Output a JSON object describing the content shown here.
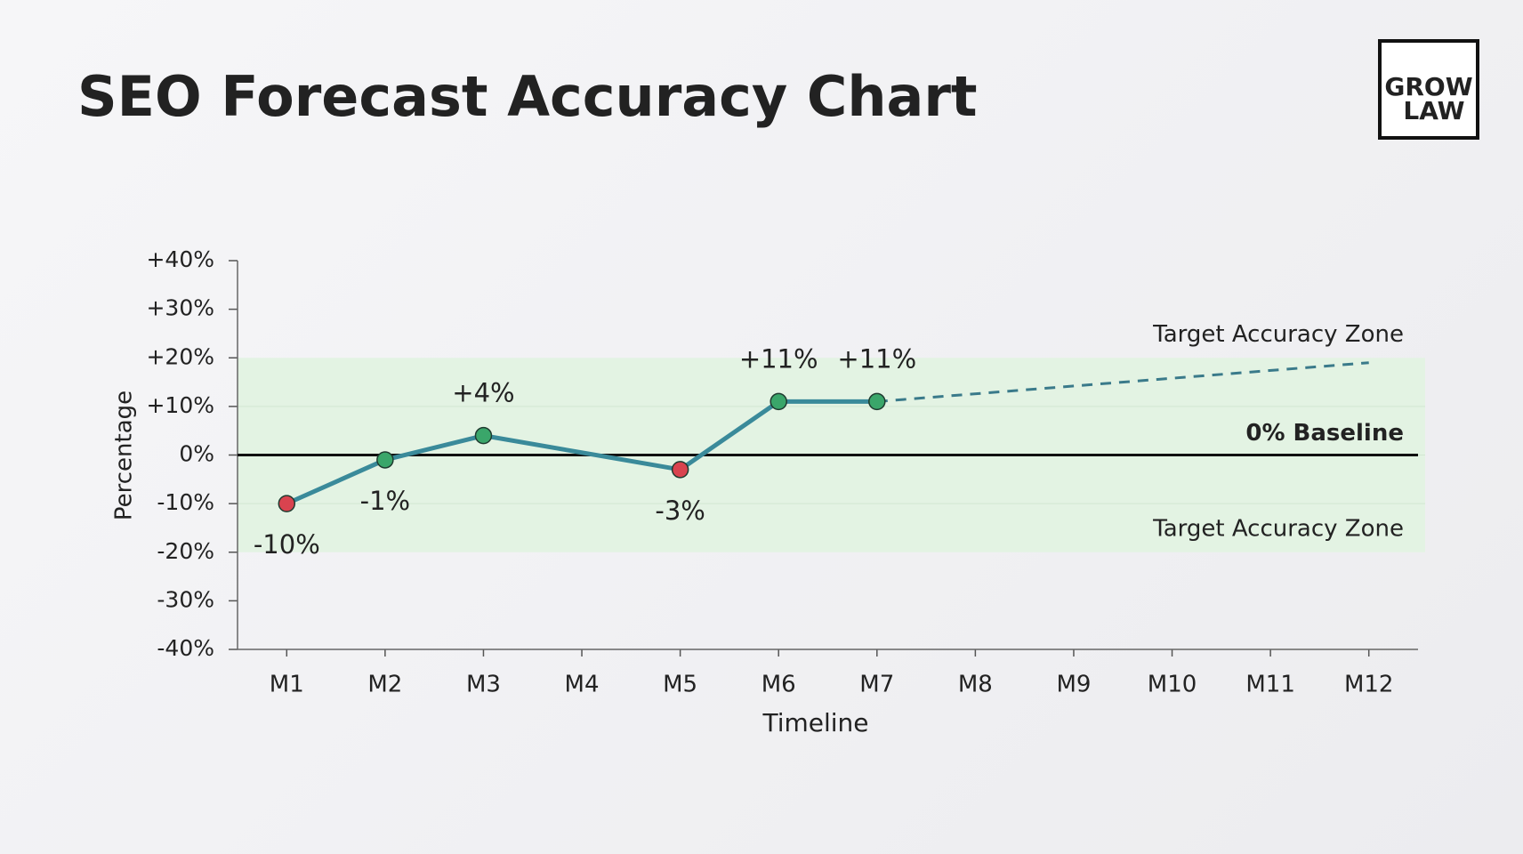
{
  "logo": {
    "lines": [
      "GROW",
      "LAW"
    ]
  },
  "chart_data": {
    "type": "line",
    "title": "SEO Forecast Accuracy Chart",
    "x_label": "Timeline",
    "y_label": "Percentage",
    "xlim": [
      0.5,
      12.5
    ],
    "xticks": [
      {
        "value": 1,
        "label": "M1"
      },
      {
        "value": 2,
        "label": "M2"
      },
      {
        "value": 3,
        "label": "M3"
      },
      {
        "value": 4,
        "label": "M4"
      },
      {
        "value": 5,
        "label": "M5"
      },
      {
        "value": 6,
        "label": "M6"
      },
      {
        "value": 7,
        "label": "M7"
      },
      {
        "value": 8,
        "label": "M8"
      },
      {
        "value": 9,
        "label": "M9"
      },
      {
        "value": 10,
        "label": "M10"
      },
      {
        "value": 11,
        "label": "M11"
      },
      {
        "value": 12,
        "label": "M12"
      }
    ],
    "ylim": [
      -40,
      40
    ],
    "yticks": [
      {
        "value": 40,
        "label": "+40%"
      },
      {
        "value": 30,
        "label": "+30%"
      },
      {
        "value": 20,
        "label": "+20%"
      },
      {
        "value": 10,
        "label": "+10%"
      },
      {
        "value": 0,
        "label": "0%"
      },
      {
        "value": -10,
        "label": "-10%"
      },
      {
        "value": -20,
        "label": "-20%"
      },
      {
        "value": -30,
        "label": "-30%"
      },
      {
        "value": -40,
        "label": "-40%"
      }
    ],
    "target_zone": [
      -20,
      20
    ],
    "zone_color": "#e3f3e3",
    "zone_labels": [
      "Target Accuracy Zone",
      "Target Accuracy Zone"
    ],
    "zone_label_colors": [
      "#8a8a8a",
      "#4f9a5a"
    ],
    "baseline": {
      "value": 0,
      "label": "0% Baseline"
    },
    "series": [
      {
        "color": "#3a8a9a",
        "x": [
          1,
          2,
          3,
          5,
          6,
          7
        ],
        "values": [
          -10,
          -1,
          4,
          -3,
          11,
          11
        ],
        "value_labels": [
          "-10%",
          "-1%",
          "+4%",
          "-3%",
          "+11%",
          "+11%"
        ],
        "marker_colors": [
          "#d9434f",
          "#3aa66a",
          "#3aa66a",
          "#d9434f",
          "#3aa66a",
          "#3aa66a"
        ]
      },
      {
        "color": "#3a7a8a",
        "dashed": true,
        "x": [
          7,
          12
        ],
        "values": [
          11,
          19
        ]
      }
    ]
  }
}
